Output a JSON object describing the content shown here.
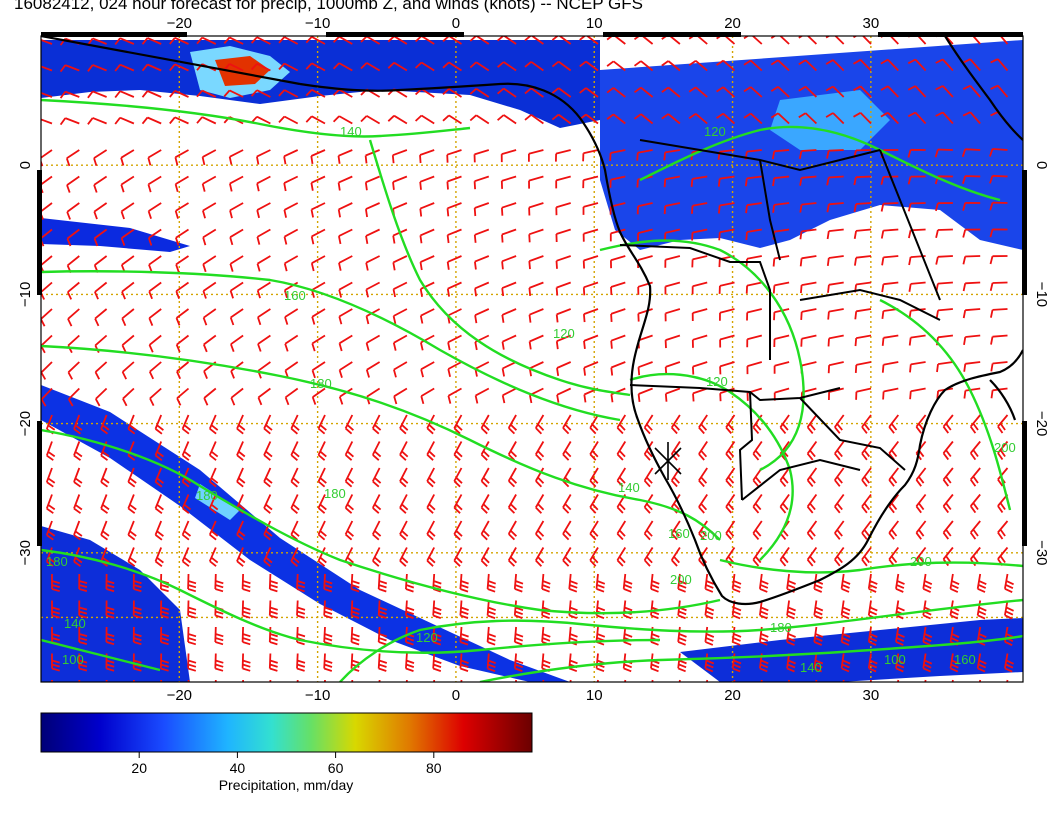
{
  "title": "16082412, 024 hour forecast for precip, 1000mb Z, and winds (knots) -- NCEP GFS",
  "map": {
    "lon_range": [
      -30,
      41
    ],
    "lat_range": [
      -40,
      10
    ],
    "lon_ticks": [
      -20,
      -10,
      0,
      10,
      20,
      30
    ],
    "lat_ticks": [
      0,
      -10,
      -20,
      -30
    ],
    "lon_tick_labels": [
      "−20",
      "−10",
      "0",
      "10",
      "20",
      "30"
    ],
    "lat_tick_labels": [
      "0",
      "−10",
      "−20",
      "−30"
    ],
    "gridlines": true,
    "colors": {
      "coast": "#000000",
      "contour": "#22dd22",
      "contour_label": "#33cc33",
      "wind_barb": "#ee1111",
      "grid": "#d4a400"
    },
    "contour_labels": [
      "140",
      "160",
      "180",
      "180",
      "180",
      "120",
      "120",
      "120",
      "140",
      "160",
      "200",
      "200",
      "200",
      "200",
      "180",
      "100",
      "180",
      "140",
      "120",
      "100",
      "140",
      "160"
    ]
  },
  "colorbar": {
    "label": "Precipitation, mm/day",
    "tick_labels": [
      "20",
      "40",
      "60",
      "80"
    ],
    "range": [
      0,
      100
    ],
    "ticks": [
      20,
      40,
      60,
      80
    ]
  }
}
